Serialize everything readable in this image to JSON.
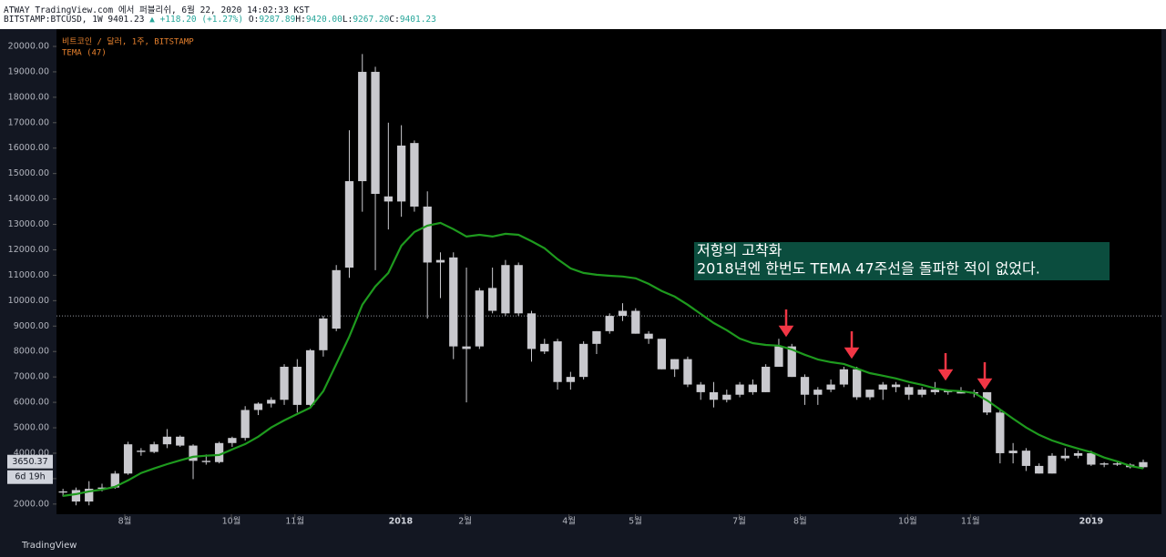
{
  "header": {
    "published": "ATWAY TradingView.com 에서 퍼블리쉬, 6월 22, 2020 14:02:33 KST",
    "symbol": "BITSTAMP:BTCUSD, 1W 9401.23",
    "change": "▲ +118.20 (+1.27%)",
    "ohlc": [
      {
        "label": "O:",
        "value": "9287.89"
      },
      {
        "label": "H:",
        "value": "9420.00"
      },
      {
        "label": "L:",
        "value": "9267.20"
      },
      {
        "label": "C:",
        "value": "9401.23"
      }
    ]
  },
  "chart_data": {
    "type": "candlestick",
    "legend": [
      "비트코인 / 달러, 1주, BITSTAMP",
      "TEMA (47)"
    ],
    "annotation": [
      "저항의 고착화",
      "2018년엔 한번도 TEMA 47주선을 돌파한 적이 없었다."
    ],
    "candle_color": "#c9c9ce",
    "open": [
      2500,
      2550,
      2100,
      2600,
      2650,
      3200,
      4100,
      4050,
      4350,
      4650,
      4300,
      3700,
      3650,
      4400,
      4600,
      5700,
      5950,
      6100,
      7400,
      5900,
      8050,
      8900,
      11300,
      14700,
      19000,
      14100,
      13900,
      16200,
      13700,
      11600,
      11700,
      8100,
      8200,
      10500,
      9500,
      11400,
      9500,
      8300,
      8400,
      6800,
      7000,
      8300,
      8800,
      9400,
      9600,
      8700,
      8500,
      7300,
      7700,
      6700,
      6400,
      6100,
      6300,
      6700,
      6400,
      7400,
      8200,
      7000,
      6300,
      6500,
      6700,
      7300,
      6200,
      6500,
      6700,
      6600,
      6300,
      6500,
      6400,
      6450,
      6350,
      6400,
      5600,
      4000,
      4100,
      3500,
      3200,
      3800,
      3900,
      4000,
      3550,
      3600,
      3550,
      3450
    ],
    "high": [
      2600,
      2650,
      2900,
      2800,
      3300,
      4450,
      4200,
      4450,
      4950,
      4700,
      4350,
      3950,
      4450,
      4650,
      5850,
      6000,
      6200,
      7500,
      7700,
      8100,
      9400,
      11400,
      16700,
      19700,
      19200,
      17000,
      16900,
      16300,
      14300,
      11900,
      11900,
      11300,
      10500,
      11300,
      11600,
      11500,
      9600,
      8500,
      8500,
      7200,
      8400,
      8800,
      9500,
      9900,
      9700,
      8800,
      8500,
      7700,
      7800,
      6800,
      6800,
      6500,
      6800,
      6900,
      7500,
      8500,
      8300,
      7100,
      6600,
      6900,
      7400,
      7400,
      6500,
      6800,
      6800,
      6700,
      6600,
      6800,
      6500,
      6600,
      6500,
      6400,
      5700,
      4400,
      4200,
      3600,
      4000,
      4200,
      4100,
      4100,
      3650,
      3700,
      3600,
      3750
    ],
    "low": [
      2300,
      1950,
      1950,
      2500,
      2600,
      3150,
      3900,
      4000,
      4200,
      4250,
      2980,
      3550,
      3600,
      4250,
      4500,
      5500,
      5800,
      5900,
      5600,
      5850,
      7800,
      8800,
      10900,
      13500,
      11200,
      12800,
      13300,
      13500,
      9300,
      10100,
      7700,
      6000,
      8100,
      9500,
      9400,
      9400,
      7600,
      7900,
      6500,
      6500,
      6900,
      7900,
      8700,
      9200,
      8700,
      8300,
      7300,
      7000,
      6600,
      6100,
      5800,
      6000,
      6200,
      6300,
      6400,
      7400,
      7000,
      5900,
      5900,
      6400,
      6600,
      6100,
      6100,
      6100,
      6400,
      6100,
      6200,
      6300,
      6300,
      6350,
      6200,
      5500,
      3600,
      3600,
      3300,
      3200,
      3200,
      3700,
      3800,
      3500,
      3450,
      3500,
      3400,
      3400
    ],
    "close": [
      2450,
      2100,
      2600,
      2650,
      3200,
      4350,
      4050,
      4350,
      4650,
      4300,
      3700,
      3650,
      4400,
      4600,
      5700,
      5950,
      6100,
      7400,
      5900,
      8050,
      9300,
      11200,
      14700,
      19000,
      14200,
      13900,
      16100,
      13700,
      11500,
      11500,
      8200,
      8200,
      10400,
      9600,
      11400,
      9500,
      8100,
      8000,
      6800,
      7000,
      8300,
      8800,
      9400,
      9600,
      8700,
      8500,
      7300,
      7700,
      6700,
      6400,
      6100,
      6300,
      6700,
      6400,
      7400,
      8200,
      7000,
      6300,
      6500,
      6700,
      7300,
      6200,
      6500,
      6700,
      6600,
      6300,
      6500,
      6400,
      6450,
      6350,
      6400,
      5600,
      4000,
      4100,
      3500,
      3200,
      3900,
      3900,
      4000,
      3550,
      3600,
      3550,
      3450,
      3650
    ],
    "series": [
      {
        "name": "TEMA (47)",
        "color": "#1e9a1e",
        "values": [
          2320,
          2390,
          2500,
          2570,
          2680,
          2930,
          3220,
          3400,
          3570,
          3720,
          3860,
          3900,
          3930,
          4150,
          4360,
          4650,
          5010,
          5290,
          5540,
          5790,
          6440,
          7510,
          8590,
          9840,
          10560,
          11090,
          12160,
          12700,
          12950,
          13060,
          12810,
          12520,
          12590,
          12520,
          12630,
          12590,
          12340,
          12060,
          11630,
          11270,
          11090,
          11020,
          10980,
          10950,
          10880,
          10660,
          10380,
          10160,
          9840,
          9480,
          9120,
          8840,
          8510,
          8330,
          8260,
          8230,
          8080,
          7870,
          7690,
          7580,
          7510,
          7330,
          7150,
          7050,
          6940,
          6800,
          6690,
          6550,
          6470,
          6440,
          6370,
          6080,
          5720,
          5360,
          5010,
          4720,
          4500,
          4330,
          4180,
          4040,
          3830,
          3680,
          3500,
          3400
        ]
      }
    ],
    "xlim": [
      -0.5,
      84.4
    ],
    "xticks": [
      {
        "value": 4.75,
        "label": "8월"
      },
      {
        "value": 12.94,
        "label": "10월"
      },
      {
        "value": 17.82,
        "label": "11월"
      },
      {
        "value": 25.95,
        "label": "2018"
      },
      {
        "value": 30.9,
        "label": "2월"
      },
      {
        "value": 38.88,
        "label": "4월"
      },
      {
        "value": 43.98,
        "label": "5월"
      },
      {
        "value": 51.96,
        "label": "7월"
      },
      {
        "value": 56.64,
        "label": "8월"
      },
      {
        "value": 64.9,
        "label": "10월"
      },
      {
        "value": 69.72,
        "label": "11월"
      },
      {
        "value": 79.0,
        "label": "2019"
      }
    ],
    "ylim": [
      1600,
      20680
    ],
    "yticks": [
      {
        "value": 2000,
        "label": "2000.00"
      },
      {
        "value": 3000,
        "label": "3000.00"
      },
      {
        "value": 4000,
        "label": "4000.00"
      },
      {
        "value": 5000,
        "label": "5000.00"
      },
      {
        "value": 6000,
        "label": "6000.00"
      },
      {
        "value": 7000,
        "label": "7000.00"
      },
      {
        "value": 8000,
        "label": "8000.00"
      },
      {
        "value": 9000,
        "label": "9000.00"
      },
      {
        "value": 10000,
        "label": "10000.00"
      },
      {
        "value": 11000,
        "label": "11000.00"
      },
      {
        "value": 12000,
        "label": "12000.00"
      },
      {
        "value": 13000,
        "label": "13000.00"
      },
      {
        "value": 14000,
        "label": "14000.00"
      },
      {
        "value": 15000,
        "label": "15000.00"
      },
      {
        "value": 16000,
        "label": "16000.00"
      },
      {
        "value": 17000,
        "label": "17000.00"
      },
      {
        "value": 18000,
        "label": "18000.00"
      },
      {
        "value": 19000,
        "label": "19000.00"
      },
      {
        "value": 20000,
        "label": "20000.00"
      }
    ],
    "price_line": 9401.23,
    "price_label": 3650.37,
    "countdown": "6d 19h"
  },
  "footer": "TradingView"
}
